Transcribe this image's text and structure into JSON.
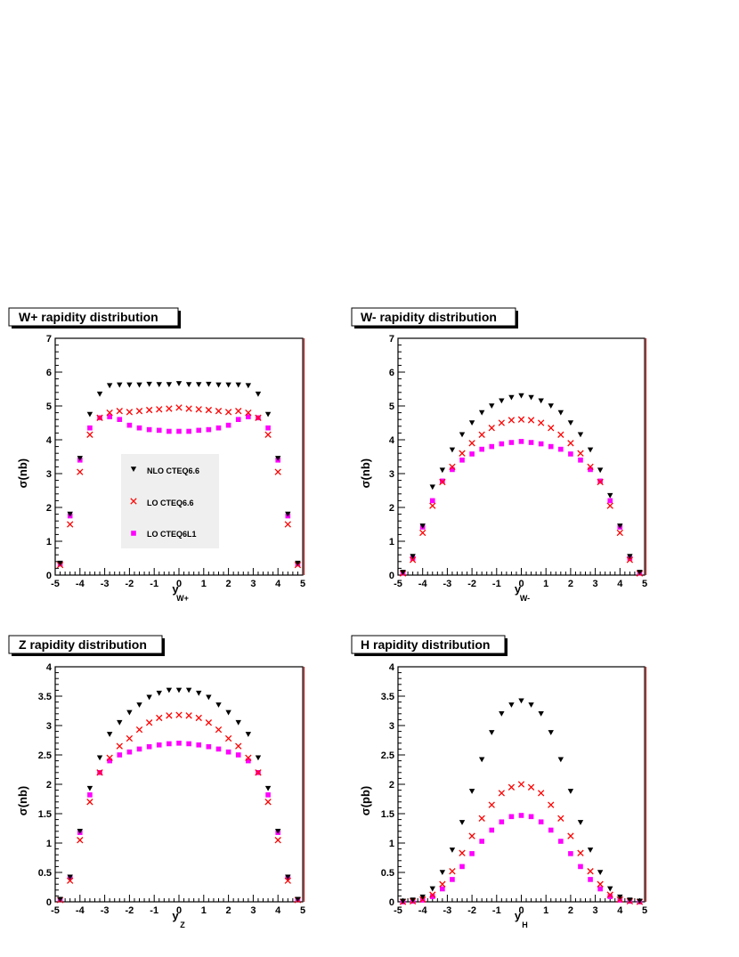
{
  "chart_data": [
    {
      "type": "scatter",
      "title": "W+ rapidity distribution",
      "xlabel": "y",
      "xlabel_sub": "W+",
      "ylabel": "σ(nb)",
      "xlim": [
        -5,
        5
      ],
      "ylim": [
        0,
        7
      ],
      "xticks": [
        "-5",
        "-4",
        "-3",
        "-2",
        "-1",
        "0",
        "1",
        "2",
        "3",
        "4",
        "5"
      ],
      "yticks": [
        "0",
        "1",
        "2",
        "3",
        "4",
        "5",
        "6",
        "7"
      ],
      "legend": {
        "position": "center-left",
        "entries": [
          {
            "label": "NLO CTEQ6.6",
            "series": 0
          },
          {
            "label": "LO CTEQ6.6",
            "series": 1
          },
          {
            "label": "LO CTEQ6L1",
            "series": 2
          }
        ]
      },
      "x": [
        -4.8,
        -4.4,
        -4.0,
        -3.6,
        -3.2,
        -2.8,
        -2.4,
        -2.0,
        -1.6,
        -1.2,
        -0.8,
        -0.4,
        0.0,
        0.4,
        0.8,
        1.2,
        1.6,
        2.0,
        2.4,
        2.8,
        3.2,
        3.6,
        4.0,
        4.4,
        4.8
      ],
      "series": [
        {
          "name": "NLO CTEQ6.6",
          "marker": "triangle-down",
          "color": "#000000",
          "values": [
            0.35,
            1.8,
            3.45,
            4.75,
            5.35,
            5.6,
            5.62,
            5.62,
            5.62,
            5.64,
            5.63,
            5.63,
            5.66,
            5.63,
            5.63,
            5.64,
            5.62,
            5.62,
            5.62,
            5.6,
            5.35,
            4.75,
            3.45,
            1.8,
            0.35
          ]
        },
        {
          "name": "LO CTEQ6.6",
          "marker": "cross",
          "color": "#ff0000",
          "values": [
            0.3,
            1.5,
            3.05,
            4.15,
            4.65,
            4.8,
            4.85,
            4.82,
            4.85,
            4.88,
            4.9,
            4.92,
            4.95,
            4.92,
            4.9,
            4.88,
            4.85,
            4.82,
            4.85,
            4.8,
            4.65,
            4.15,
            3.05,
            1.5,
            0.3
          ]
        },
        {
          "name": "LO CTEQ6L1",
          "marker": "square",
          "color": "#ff00ff",
          "values": [
            0.33,
            1.75,
            3.4,
            4.35,
            4.65,
            4.68,
            4.6,
            4.43,
            4.35,
            4.3,
            4.28,
            4.25,
            4.25,
            4.25,
            4.28,
            4.3,
            4.35,
            4.43,
            4.6,
            4.68,
            4.65,
            4.35,
            3.4,
            1.75,
            0.33
          ]
        }
      ]
    },
    {
      "type": "scatter",
      "title": "W- rapidity distribution",
      "xlabel": "y",
      "xlabel_sub": "W-",
      "ylabel": "σ(nb)",
      "xlim": [
        -5,
        5
      ],
      "ylim": [
        0,
        7
      ],
      "xticks": [
        "-5",
        "-4",
        "-3",
        "-2",
        "-1",
        "0",
        "1",
        "2",
        "3",
        "4",
        "5"
      ],
      "yticks": [
        "0",
        "1",
        "2",
        "3",
        "4",
        "5",
        "6",
        "7"
      ],
      "x": [
        -4.8,
        -4.4,
        -4.0,
        -3.6,
        -3.2,
        -2.8,
        -2.4,
        -2.0,
        -1.6,
        -1.2,
        -0.8,
        -0.4,
        0.0,
        0.4,
        0.8,
        1.2,
        1.6,
        2.0,
        2.4,
        2.8,
        3.2,
        3.6,
        4.0,
        4.4,
        4.8
      ],
      "series": [
        {
          "name": "NLO CTEQ6.6",
          "marker": "triangle-down",
          "color": "#000000",
          "values": [
            0.08,
            0.55,
            1.45,
            2.6,
            3.1,
            3.7,
            4.15,
            4.5,
            4.8,
            5.0,
            5.15,
            5.25,
            5.3,
            5.25,
            5.15,
            5.0,
            4.8,
            4.5,
            4.15,
            3.7,
            3.1,
            2.35,
            1.45,
            0.55,
            0.08
          ]
        },
        {
          "name": "LO CTEQ6.6",
          "marker": "cross",
          "color": "#ff0000",
          "values": [
            0.05,
            0.45,
            1.25,
            2.05,
            2.75,
            3.2,
            3.6,
            3.9,
            4.15,
            4.35,
            4.5,
            4.58,
            4.6,
            4.58,
            4.5,
            4.35,
            4.15,
            3.9,
            3.6,
            3.2,
            2.75,
            2.05,
            1.25,
            0.45,
            0.05
          ]
        },
        {
          "name": "LO CTEQ6L1",
          "marker": "square",
          "color": "#ff00ff",
          "values": [
            0.06,
            0.5,
            1.42,
            2.2,
            2.78,
            3.12,
            3.4,
            3.58,
            3.72,
            3.8,
            3.88,
            3.92,
            3.95,
            3.92,
            3.88,
            3.8,
            3.72,
            3.58,
            3.4,
            3.12,
            2.78,
            2.2,
            1.42,
            0.5,
            0.06
          ]
        }
      ]
    },
    {
      "type": "scatter",
      "title": "Z rapidity distribution",
      "xlabel": "y",
      "xlabel_sub": "Z",
      "ylabel": "σ(nb)",
      "xlim": [
        -5,
        5
      ],
      "ylim": [
        0,
        4
      ],
      "xticks": [
        "-5",
        "-4",
        "-3",
        "-2",
        "-1",
        "0",
        "1",
        "2",
        "3",
        "4",
        "5"
      ],
      "yticks": [
        "0",
        "0.5",
        "1",
        "1.5",
        "2",
        "2.5",
        "3",
        "3.5",
        "4"
      ],
      "x": [
        -4.8,
        -4.4,
        -4.0,
        -3.6,
        -3.2,
        -2.8,
        -2.4,
        -2.0,
        -1.6,
        -1.2,
        -0.8,
        -0.4,
        0.0,
        0.4,
        0.8,
        1.2,
        1.6,
        2.0,
        2.4,
        2.8,
        3.2,
        3.6,
        4.0,
        4.4,
        4.8
      ],
      "series": [
        {
          "name": "NLO CTEQ6.6",
          "marker": "triangle-down",
          "color": "#000000",
          "values": [
            0.04,
            0.42,
            1.2,
            1.93,
            2.45,
            2.85,
            3.05,
            3.22,
            3.35,
            3.48,
            3.55,
            3.6,
            3.6,
            3.6,
            3.55,
            3.48,
            3.35,
            3.22,
            3.05,
            2.85,
            2.45,
            1.93,
            1.2,
            0.42,
            0.04
          ]
        },
        {
          "name": "LO CTEQ6.6",
          "marker": "cross",
          "color": "#ff0000",
          "values": [
            0.03,
            0.36,
            1.05,
            1.7,
            2.2,
            2.45,
            2.65,
            2.78,
            2.93,
            3.05,
            3.13,
            3.17,
            3.18,
            3.17,
            3.13,
            3.05,
            2.93,
            2.78,
            2.65,
            2.45,
            2.2,
            1.7,
            1.05,
            0.36,
            0.03
          ]
        },
        {
          "name": "LO CTEQ6L1",
          "marker": "square",
          "color": "#ff00ff",
          "values": [
            0.04,
            0.42,
            1.18,
            1.82,
            2.2,
            2.4,
            2.5,
            2.55,
            2.6,
            2.64,
            2.67,
            2.69,
            2.7,
            2.69,
            2.67,
            2.64,
            2.6,
            2.55,
            2.5,
            2.4,
            2.2,
            1.82,
            1.18,
            0.42,
            0.04
          ]
        }
      ]
    },
    {
      "type": "scatter",
      "title": "H rapidity distribution",
      "xlabel": "y",
      "xlabel_sub": "H",
      "ylabel": "σ(pb)",
      "xlim": [
        -5,
        5
      ],
      "ylim": [
        0,
        4
      ],
      "xticks": [
        "-5",
        "-4",
        "-3",
        "-2",
        "-1",
        "0",
        "1",
        "2",
        "3",
        "4",
        "5"
      ],
      "yticks": [
        "0",
        "0.5",
        "1",
        "1.5",
        "2",
        "2.5",
        "3",
        "3.5",
        "4"
      ],
      "x": [
        -4.8,
        -4.4,
        -4.0,
        -3.6,
        -3.2,
        -2.8,
        -2.4,
        -2.0,
        -1.6,
        -1.2,
        -0.8,
        -0.4,
        0.0,
        0.4,
        0.8,
        1.2,
        1.6,
        2.0,
        2.4,
        2.8,
        3.2,
        3.6,
        4.0,
        4.4,
        4.8
      ],
      "series": [
        {
          "name": "NLO CTEQ6.6",
          "marker": "triangle-down",
          "color": "#000000",
          "values": [
            0.01,
            0.03,
            0.08,
            0.22,
            0.5,
            0.88,
            1.35,
            1.88,
            2.42,
            2.88,
            3.2,
            3.35,
            3.42,
            3.35,
            3.2,
            2.88,
            2.42,
            1.88,
            1.35,
            0.88,
            0.5,
            0.22,
            0.08,
            0.03,
            0.01
          ]
        },
        {
          "name": "LO CTEQ6.6",
          "marker": "cross",
          "color": "#ff0000",
          "values": [
            0.0,
            0.01,
            0.04,
            0.12,
            0.3,
            0.52,
            0.83,
            1.12,
            1.42,
            1.65,
            1.85,
            1.95,
            2.0,
            1.95,
            1.85,
            1.65,
            1.42,
            1.12,
            0.83,
            0.52,
            0.3,
            0.12,
            0.04,
            0.01,
            0.0
          ]
        },
        {
          "name": "LO CTEQ6L1",
          "marker": "square",
          "color": "#ff00ff",
          "values": [
            0.0,
            0.01,
            0.03,
            0.09,
            0.22,
            0.38,
            0.6,
            0.82,
            1.03,
            1.22,
            1.36,
            1.45,
            1.47,
            1.45,
            1.36,
            1.22,
            1.03,
            0.82,
            0.6,
            0.38,
            0.22,
            0.09,
            0.03,
            0.01,
            0.0
          ]
        }
      ]
    }
  ]
}
